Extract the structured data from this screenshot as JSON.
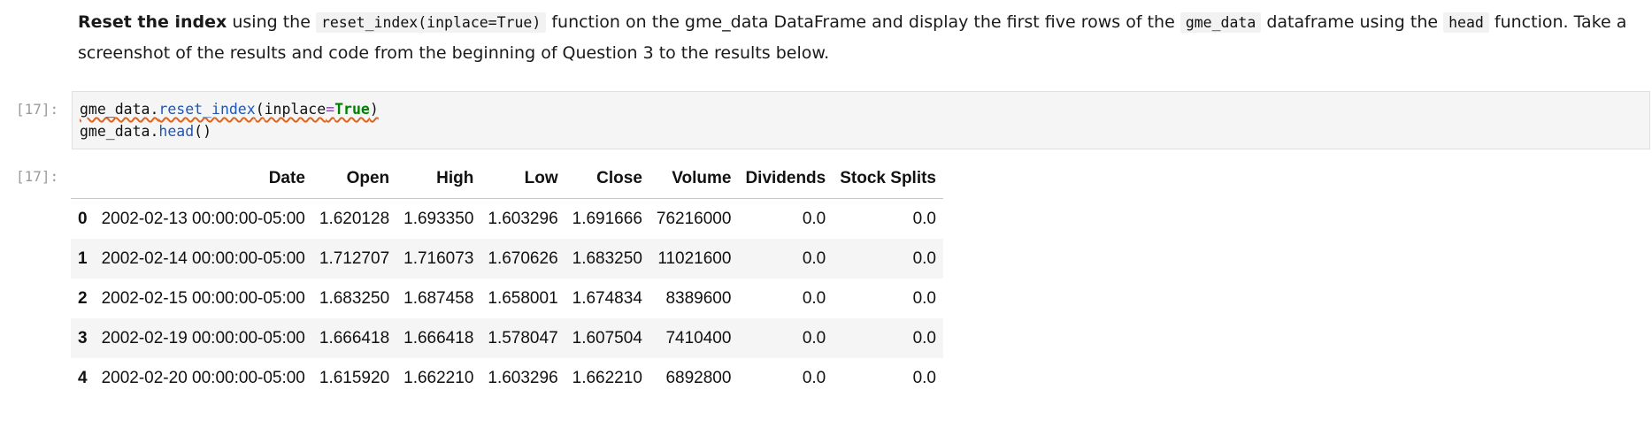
{
  "markdown": {
    "bold_lead": "Reset the index",
    "text_1": " using the ",
    "code_1": "reset_index(inplace=True)",
    "text_2": " function on the gme_data DataFrame and display the first five rows of the ",
    "code_2": "gme_data",
    "text_3": " dataframe using the ",
    "code_3": "head",
    "text_4": " function. Take a screenshot of the results and code from the beginning of Question 3 to the results below."
  },
  "code_cell": {
    "prompt": "[17]:",
    "line1": {
      "obj": "gme_data.",
      "method": "reset_index",
      "open": "(",
      "arg": "inplace",
      "op": "=",
      "kw": "True",
      "close": ")"
    },
    "line2": {
      "obj": "gme_data.",
      "method": "head",
      "call": "()"
    }
  },
  "output": {
    "prompt": "[17]:",
    "columns": [
      "",
      "Date",
      "Open",
      "High",
      "Low",
      "Close",
      "Volume",
      "Dividends",
      "Stock Splits"
    ],
    "rows": [
      [
        "0",
        "2002-02-13 00:00:00-05:00",
        "1.620128",
        "1.693350",
        "1.603296",
        "1.691666",
        "76216000",
        "0.0",
        "0.0"
      ],
      [
        "1",
        "2002-02-14 00:00:00-05:00",
        "1.712707",
        "1.716073",
        "1.670626",
        "1.683250",
        "11021600",
        "0.0",
        "0.0"
      ],
      [
        "2",
        "2002-02-15 00:00:00-05:00",
        "1.683250",
        "1.687458",
        "1.658001",
        "1.674834",
        "8389600",
        "0.0",
        "0.0"
      ],
      [
        "3",
        "2002-02-19 00:00:00-05:00",
        "1.666418",
        "1.666418",
        "1.578047",
        "1.607504",
        "7410400",
        "0.0",
        "0.0"
      ],
      [
        "4",
        "2002-02-20 00:00:00-05:00",
        "1.615920",
        "1.662210",
        "1.603296",
        "1.662210",
        "6892800",
        "0.0",
        "0.0"
      ]
    ]
  }
}
